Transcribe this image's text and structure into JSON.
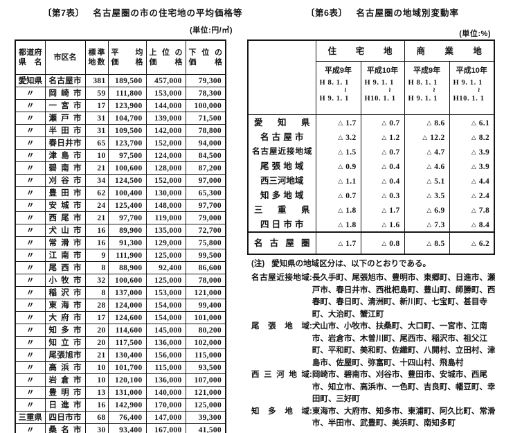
{
  "table7": {
    "title_tag": "〔第7表〕",
    "title": "名古屋圏の市の住宅地の平均価格等",
    "unit": "(単位:円/㎡)",
    "col_headers": {
      "pref": [
        "都道府",
        "県名"
      ],
      "city": "市区名",
      "sites": [
        "標準",
        "地数"
      ],
      "avg": [
        "平均",
        "価格"
      ],
      "upper": [
        "上位の",
        "価格"
      ],
      "lower": [
        "下位の",
        "価格"
      ]
    },
    "rows": [
      [
        "愛知県",
        "名古屋市",
        "381",
        "189,500",
        "457,000",
        "79,300"
      ],
      [
        "〃",
        "岡崎市",
        "59",
        "111,800",
        "153,000",
        "78,300"
      ],
      [
        "〃",
        "一宮市",
        "17",
        "123,900",
        "144,000",
        "100,000"
      ],
      [
        "〃",
        "瀬戸市",
        "31",
        "104,700",
        "139,000",
        "71,500"
      ],
      [
        "〃",
        "半田市",
        "31",
        "109,500",
        "142,000",
        "78,800"
      ],
      [
        "〃",
        "春日井市",
        "65",
        "123,700",
        "152,000",
        "94,000"
      ],
      [
        "〃",
        "津島市",
        "10",
        "97,500",
        "124,000",
        "84,500"
      ],
      [
        "〃",
        "碧南市",
        "21",
        "100,600",
        "128,000",
        "87,200"
      ],
      [
        "〃",
        "刈谷市",
        "34",
        "124,500",
        "152,000",
        "97,000"
      ],
      [
        "〃",
        "豊田市",
        "62",
        "100,400",
        "130,000",
        "65,300"
      ],
      [
        "〃",
        "安城市",
        "24",
        "125,400",
        "148,000",
        "97,700"
      ],
      [
        "〃",
        "西尾市",
        "21",
        "97,700",
        "119,000",
        "79,000"
      ],
      [
        "〃",
        "犬山市",
        "16",
        "89,900",
        "135,000",
        "72,700"
      ],
      [
        "〃",
        "常滑市",
        "16",
        "91,300",
        "129,000",
        "75,800"
      ],
      [
        "〃",
        "江南市",
        "9",
        "111,900",
        "125,000",
        "99,500"
      ],
      [
        "〃",
        "尾西市",
        "8",
        "88,900",
        "92,400",
        "86,600"
      ],
      [
        "〃",
        "小牧市",
        "32",
        "100,600",
        "125,000",
        "78,000"
      ],
      [
        "〃",
        "稲沢市",
        "8",
        "137,000",
        "153,000",
        "121,000"
      ],
      [
        "〃",
        "東海市",
        "28",
        "124,000",
        "154,000",
        "99,400"
      ],
      [
        "〃",
        "大府市",
        "17",
        "124,600",
        "154,000",
        "101,000"
      ],
      [
        "〃",
        "知多市",
        "20",
        "114,600",
        "145,000",
        "80,200"
      ],
      [
        "〃",
        "知立市",
        "20",
        "117,500",
        "136,000",
        "102,000"
      ],
      [
        "〃",
        "尾張旭市",
        "21",
        "130,400",
        "156,000",
        "115,000"
      ],
      [
        "〃",
        "高浜市",
        "10",
        "101,700",
        "115,000",
        "93,500"
      ],
      [
        "〃",
        "岩倉市",
        "10",
        "120,100",
        "136,000",
        "107,000"
      ],
      [
        "〃",
        "豊明市",
        "13",
        "131,000",
        "140,000",
        "121,000"
      ],
      [
        "〃",
        "日進市",
        "16",
        "142,900",
        "170,000",
        "125,000"
      ],
      [
        "三重県",
        "四日市市",
        "68",
        "76,400",
        "147,000",
        "39,300"
      ],
      [
        "〃",
        "桑名市",
        "30",
        "93,400",
        "167,000",
        "41,500"
      ]
    ]
  },
  "table6": {
    "title_tag": "〔第6表〕",
    "title": "名古屋圏の地域別変動率",
    "unit": "(単位:%)",
    "group_headers": [
      "住宅地",
      "商業地"
    ],
    "period_headers": [
      {
        "year": "平成9年",
        "from": "H 8. 1. 1",
        "wave": "≀",
        "to": "H 9. 1. 1"
      },
      {
        "year": "平成10年",
        "from": "H 9. 1. 1",
        "wave": "≀",
        "to": "H10. 1. 1"
      },
      {
        "year": "平成9年",
        "from": "H 8. 1. 1",
        "wave": "≀",
        "to": "H 9. 1. 1"
      },
      {
        "year": "平成10年",
        "from": "H 9. 1. 1",
        "wave": "≀",
        "to": "H10. 1. 1"
      }
    ],
    "rows": [
      {
        "label": "愛知県",
        "style": "full",
        "values": [
          "△ 1.7",
          "△ 0.7",
          "△ 8.6",
          "△ 6.1"
        ]
      },
      {
        "label": "名古屋市",
        "style": "sub",
        "values": [
          "△ 3.2",
          "△ 1.2",
          "△ 12.2",
          "△ 8.2"
        ]
      },
      {
        "label": "名古屋近接地域",
        "style": "long",
        "values": [
          "△ 1.5",
          "△ 0.7",
          "△ 4.7",
          "△ 3.9"
        ]
      },
      {
        "label": "尾張地域",
        "style": "sub",
        "values": [
          "△ 0.9",
          "△ 0.4",
          "△ 4.6",
          "△ 3.9"
        ]
      },
      {
        "label": "西三河地域",
        "style": "sub",
        "values": [
          "△ 1.1",
          "△ 0.4",
          "△ 5.1",
          "△ 4.4"
        ]
      },
      {
        "label": "知多地域",
        "style": "sub",
        "values": [
          "△ 0.7",
          "△ 0.3",
          "△ 3.5",
          "△ 2.4"
        ]
      },
      {
        "label": "三重県",
        "style": "full",
        "values": [
          "△ 1.8",
          "△ 1.7",
          "△ 6.9",
          "△ 7.8"
        ]
      },
      {
        "label": "四日市市",
        "style": "sub",
        "values": [
          "△ 1.8",
          "△ 1.6",
          "△ 7.3",
          "△ 8.4"
        ]
      }
    ],
    "total_row": {
      "label": "名古屋圏",
      "style": "full",
      "values": [
        "△ 1.7",
        "△ 0.8",
        "△ 8.5",
        "△ 6.2"
      ]
    }
  },
  "notes": {
    "heading_tag": "(注)",
    "heading": "愛知県の地域区分は、以下のとおりである。",
    "separator": ":",
    "entries": [
      {
        "label": "名古屋近接地域",
        "text": "長久手町、尾張旭市、豊明市、東郷町、日進市、瀬戸市、春日井市、西枇杷島町、豊山町、師勝町、西春町、春日町、清洲町、新川町、七宝町、甚目寺町、大治町、蟹江町"
      },
      {
        "label": "尾張地域",
        "text": "犬山市、小牧市、扶桑町、大口町、一宮市、江南市、岩倉市、木曽川町、尾西市、稲沢市、祖父江町、平和町、美和町、佐織町、八開村、立田村、津島市、佐屋町、弥富町、十四山村、飛島村"
      },
      {
        "label": "西三河地域",
        "text": "岡崎市、碧南市、刈谷市、豊田市、安城市、西尾市、知立市、高浜市、一色町、吉良町、幡豆町、幸田町、三好町"
      },
      {
        "label": "知多地域",
        "text": "東海市、大府市、知多市、東浦町、阿久比町、常滑市、半田市、武豊町、美浜町、南知多町"
      }
    ]
  }
}
